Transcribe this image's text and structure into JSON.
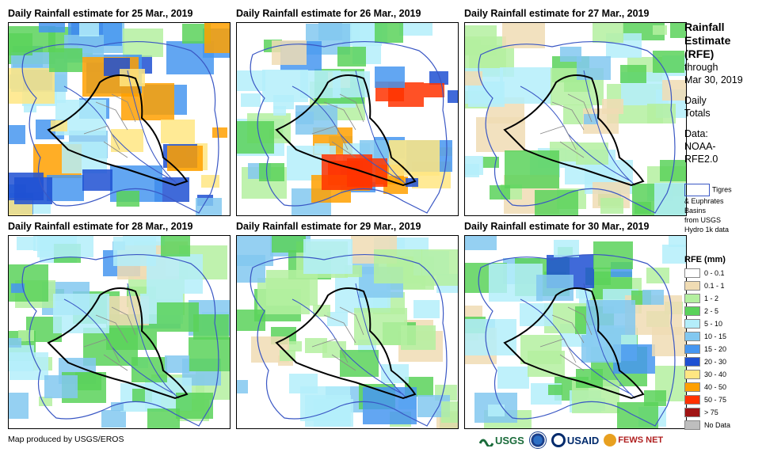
{
  "panels": [
    {
      "title": "Daily Rainfall estimate for 25 Mar., 2019",
      "intensity": 1.0
    },
    {
      "title": "Daily Rainfall estimate for 26 Mar., 2019",
      "intensity": 0.65
    },
    {
      "title": "Daily Rainfall estimate for 27 Mar., 2019",
      "intensity": 0.15
    },
    {
      "title": "Daily Rainfall estimate for 28 Mar., 2019",
      "intensity": 0.35
    },
    {
      "title": "Daily Rainfall estimate for 29 Mar., 2019",
      "intensity": 0.3
    },
    {
      "title": "Daily Rainfall estimate for 30 Mar., 2019",
      "intensity": 0.45
    }
  ],
  "side": {
    "title_lines": [
      "Rainfall",
      "Estimate",
      "(RFE)"
    ],
    "through_lines": [
      "through",
      "Mar 30, 2019"
    ],
    "daily_lines": [
      "Daily",
      "Totals"
    ],
    "data_lines": [
      "Data:",
      "NOAA-",
      "RFE2.0"
    ]
  },
  "basins": {
    "lines": [
      "Tigres",
      "& Euphrates",
      "Basins",
      "from USGS",
      "Hydro 1k data"
    ]
  },
  "legend": {
    "title": "RFE (mm)",
    "items": [
      {
        "label": "0 - 0.1",
        "color": "#ffffff"
      },
      {
        "label": "0.1 - 1",
        "color": "#f0dcb4"
      },
      {
        "label": "1 - 2",
        "color": "#b4f0a0"
      },
      {
        "label": "2 - 5",
        "color": "#5ad25a"
      },
      {
        "label": "5 - 10",
        "color": "#b4eefa"
      },
      {
        "label": "10 - 15",
        "color": "#82c8f0"
      },
      {
        "label": "15 - 20",
        "color": "#4696f0"
      },
      {
        "label": "20 - 30",
        "color": "#1e50d2"
      },
      {
        "label": "30 - 40",
        "color": "#ffe682"
      },
      {
        "label": "40 - 50",
        "color": "#ffa000"
      },
      {
        "label": "50 - 75",
        "color": "#ff3200"
      },
      {
        "label": "> 75",
        "color": "#a01414"
      },
      {
        "label": "No Data",
        "color": "#bebebe"
      }
    ]
  },
  "credit": "Map produced by USGS/EROS",
  "logos": {
    "usgs": "USGS",
    "usaid": "USAID",
    "fewsnet": "FEWS NET"
  }
}
